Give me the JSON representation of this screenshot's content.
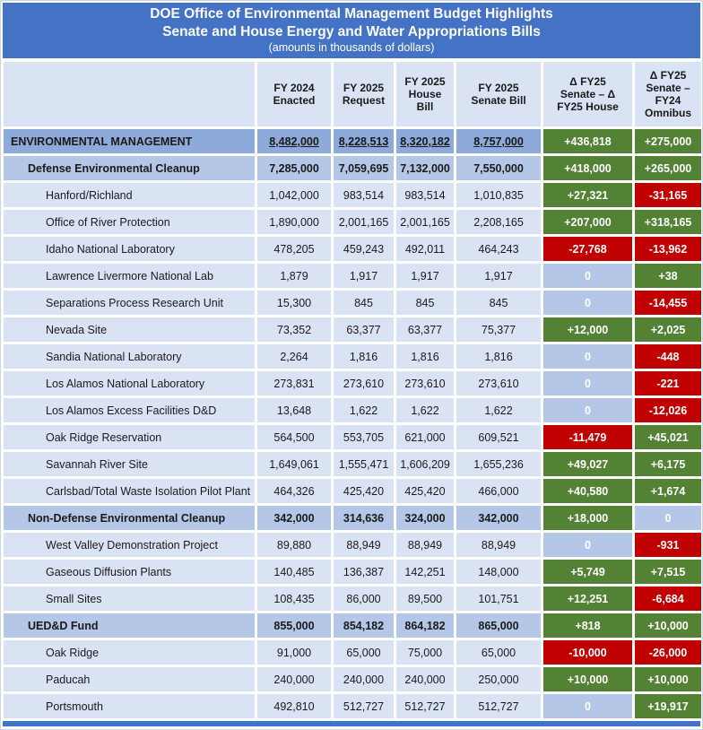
{
  "title": {
    "line1": "DOE Office of Environmental Management Budget Highlights",
    "line2": "Senate and House Energy and Water Appropriations Bills",
    "line3": "(amounts in thousands of dollars)"
  },
  "columns": {
    "label": "",
    "fy2024_enacted": "FY 2024\nEnacted",
    "fy2025_request": "FY 2025\nRequest",
    "fy2025_house": "FY 2025\nHouse\nBill",
    "fy2025_senate": "FY 2025\nSenate Bill",
    "delta_house": "Δ FY25\nSenate – Δ\nFY25 House",
    "delta_omnibus": "Δ FY25\nSenate –\nFY24\nOmnibus"
  },
  "colors": {
    "banner_blue": "#4472C4",
    "header_bg": "#DAE3F3",
    "level0_bg": "#8EAADB",
    "level1_bg": "#B4C7E7",
    "level2_bg": "#DAE3F3",
    "green": "#548235",
    "red": "#C00000",
    "zero_bg": "#B4C7E7"
  },
  "rows": [
    {
      "label": "ENVIRONMENTAL MANAGEMENT",
      "level": 0,
      "values": [
        "8,482,000",
        "8,228,513",
        "8,320,182",
        "8,757,000"
      ],
      "deltas": [
        {
          "text": "+436,818",
          "type": "positive"
        },
        {
          "text": "+275,000",
          "type": "positive"
        }
      ]
    },
    {
      "label": "Defense Environmental Cleanup",
      "level": 1,
      "values": [
        "7,285,000",
        "7,059,695",
        "7,132,000",
        "7,550,000"
      ],
      "deltas": [
        {
          "text": "+418,000",
          "type": "positive"
        },
        {
          "text": "+265,000",
          "type": "positive"
        }
      ]
    },
    {
      "label": "Hanford/Richland",
      "level": 2,
      "values": [
        "1,042,000",
        "983,514",
        "983,514",
        "1,010,835"
      ],
      "deltas": [
        {
          "text": "+27,321",
          "type": "positive"
        },
        {
          "text": "-31,165",
          "type": "negative"
        }
      ]
    },
    {
      "label": "Office of River Protection",
      "level": 2,
      "values": [
        "1,890,000",
        "2,001,165",
        "2,001,165",
        "2,208,165"
      ],
      "deltas": [
        {
          "text": "+207,000",
          "type": "positive"
        },
        {
          "text": "+318,165",
          "type": "positive"
        }
      ]
    },
    {
      "label": "Idaho National Laboratory",
      "level": 2,
      "values": [
        "478,205",
        "459,243",
        "492,011",
        "464,243"
      ],
      "deltas": [
        {
          "text": "-27,768",
          "type": "negative"
        },
        {
          "text": "-13,962",
          "type": "negative"
        }
      ]
    },
    {
      "label": "Lawrence Livermore National Lab",
      "level": 2,
      "values": [
        "1,879",
        "1,917",
        "1,917",
        "1,917"
      ],
      "deltas": [
        {
          "text": "0",
          "type": "zero"
        },
        {
          "text": "+38",
          "type": "positive"
        }
      ]
    },
    {
      "label": "Separations Process Research Unit",
      "level": 2,
      "values": [
        "15,300",
        "845",
        "845",
        "845"
      ],
      "deltas": [
        {
          "text": "0",
          "type": "zero"
        },
        {
          "text": "-14,455",
          "type": "negative"
        }
      ]
    },
    {
      "label": "Nevada Site",
      "level": 2,
      "values": [
        "73,352",
        "63,377",
        "63,377",
        "75,377"
      ],
      "deltas": [
        {
          "text": "+12,000",
          "type": "positive"
        },
        {
          "text": "+2,025",
          "type": "positive"
        }
      ]
    },
    {
      "label": "Sandia National Laboratory",
      "level": 2,
      "values": [
        "2,264",
        "1,816",
        "1,816",
        "1,816"
      ],
      "deltas": [
        {
          "text": "0",
          "type": "zero"
        },
        {
          "text": "-448",
          "type": "negative"
        }
      ]
    },
    {
      "label": "Los Alamos National Laboratory",
      "level": 2,
      "values": [
        "273,831",
        "273,610",
        "273,610",
        "273,610"
      ],
      "deltas": [
        {
          "text": "0",
          "type": "zero"
        },
        {
          "text": "-221",
          "type": "negative"
        }
      ]
    },
    {
      "label": "Los Alamos Excess Facilities D&D",
      "level": 2,
      "values": [
        "13,648",
        "1,622",
        "1,622",
        "1,622"
      ],
      "deltas": [
        {
          "text": "0",
          "type": "zero"
        },
        {
          "text": "-12,026",
          "type": "negative"
        }
      ]
    },
    {
      "label": "Oak Ridge Reservation",
      "level": 2,
      "values": [
        "564,500",
        "553,705",
        "621,000",
        "609,521"
      ],
      "deltas": [
        {
          "text": "-11,479",
          "type": "negative"
        },
        {
          "text": "+45,021",
          "type": "positive"
        }
      ]
    },
    {
      "label": "Savannah River Site",
      "level": 2,
      "values": [
        "1,649,061",
        "1,555,471",
        "1,606,209",
        "1,655,236"
      ],
      "deltas": [
        {
          "text": "+49,027",
          "type": "positive"
        },
        {
          "text": "+6,175",
          "type": "positive"
        }
      ]
    },
    {
      "label": "Carlsbad/Total Waste Isolation Pilot Plant",
      "level": 2,
      "values": [
        "464,326",
        "425,420",
        "425,420",
        "466,000"
      ],
      "deltas": [
        {
          "text": "+40,580",
          "type": "positive"
        },
        {
          "text": "+1,674",
          "type": "positive"
        }
      ]
    },
    {
      "label": "Non-Defense Environmental Cleanup",
      "level": 1,
      "values": [
        "342,000",
        "314,636",
        "324,000",
        "342,000"
      ],
      "deltas": [
        {
          "text": "+18,000",
          "type": "positive"
        },
        {
          "text": "0",
          "type": "zero"
        }
      ]
    },
    {
      "label": "West Valley Demonstration Project",
      "level": 2,
      "values": [
        "89,880",
        "88,949",
        "88,949",
        "88,949"
      ],
      "deltas": [
        {
          "text": "0",
          "type": "zero"
        },
        {
          "text": "-931",
          "type": "negative"
        }
      ]
    },
    {
      "label": "Gaseous Diffusion Plants",
      "level": 2,
      "values": [
        "140,485",
        "136,387",
        "142,251",
        "148,000"
      ],
      "deltas": [
        {
          "text": "+5,749",
          "type": "positive"
        },
        {
          "text": "+7,515",
          "type": "positive"
        }
      ]
    },
    {
      "label": "Small Sites",
      "level": 2,
      "values": [
        "108,435",
        "86,000",
        "89,500",
        "101,751"
      ],
      "deltas": [
        {
          "text": "+12,251",
          "type": "positive"
        },
        {
          "text": "-6,684",
          "type": "negative"
        }
      ]
    },
    {
      "label": "UED&D Fund",
      "level": 1,
      "values": [
        "855,000",
        "854,182",
        "864,182",
        "865,000"
      ],
      "deltas": [
        {
          "text": "+818",
          "type": "positive"
        },
        {
          "text": "+10,000",
          "type": "positive"
        }
      ]
    },
    {
      "label": "Oak Ridge",
      "level": 2,
      "values": [
        "91,000",
        "65,000",
        "75,000",
        "65,000"
      ],
      "deltas": [
        {
          "text": "-10,000",
          "type": "negative"
        },
        {
          "text": "-26,000",
          "type": "negative"
        }
      ]
    },
    {
      "label": "Paducah",
      "level": 2,
      "values": [
        "240,000",
        "240,000",
        "240,000",
        "250,000"
      ],
      "deltas": [
        {
          "text": "+10,000",
          "type": "positive"
        },
        {
          "text": "+10,000",
          "type": "positive"
        }
      ]
    },
    {
      "label": "Portsmouth",
      "level": 2,
      "values": [
        "492,810",
        "512,727",
        "512,727",
        "512,727"
      ],
      "deltas": [
        {
          "text": "0",
          "type": "zero"
        },
        {
          "text": "+19,917",
          "type": "positive"
        }
      ]
    }
  ]
}
